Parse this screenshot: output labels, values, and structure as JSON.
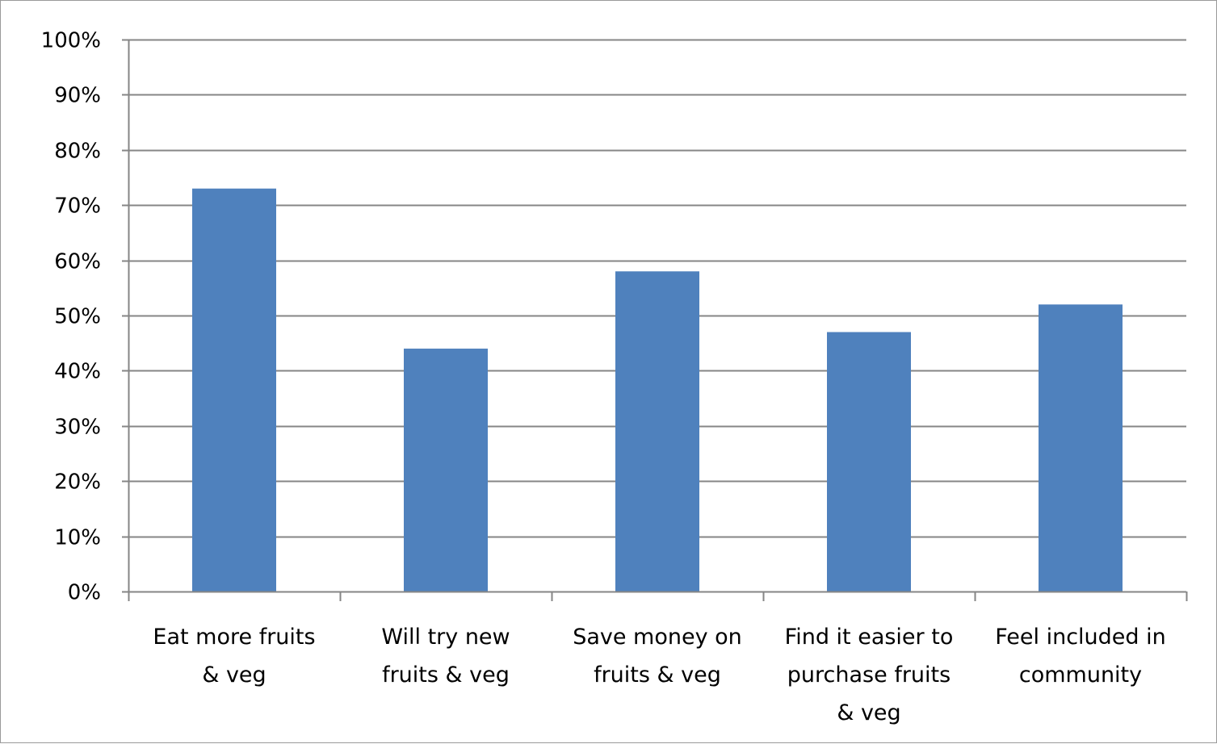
{
  "chart_data": {
    "type": "bar",
    "categories": [
      [
        "Eat more fruits",
        "& veg"
      ],
      [
        "Will try new",
        "fruits & veg"
      ],
      [
        "Save money on",
        "fruits & veg"
      ],
      [
        "Find it easier to",
        "purchase fruits",
        "& veg"
      ],
      [
        "Feel included in",
        "community"
      ]
    ],
    "values": [
      73,
      44,
      58,
      47,
      52
    ],
    "ylim": [
      0,
      100
    ],
    "yticks": [
      0,
      10,
      20,
      30,
      40,
      50,
      60,
      70,
      80,
      90,
      100
    ],
    "ytick_labels": [
      "0%",
      "10%",
      "20%",
      "30%",
      "40%",
      "50%",
      "60%",
      "70%",
      "80%",
      "90%",
      "100%"
    ],
    "grid": true,
    "legend": "none",
    "colors": {
      "bar": "#4f81bd",
      "grid": "#868686",
      "axis": "#868686"
    }
  }
}
